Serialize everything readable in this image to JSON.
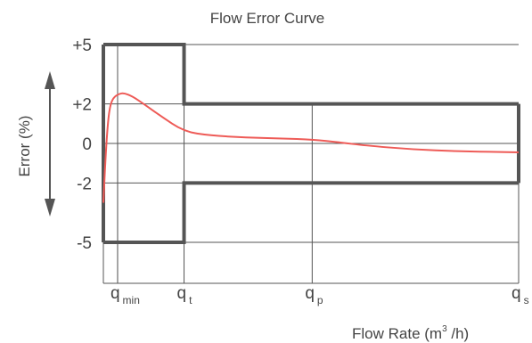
{
  "chart_data": {
    "type": "line",
    "title": "Flow Error Curve",
    "xlabel": "Flow Rate (m",
    "xlabel_sup": "3",
    "xlabel_tail": " /h)",
    "ylabel": "Error (%)",
    "y_ticks": [
      {
        "value": 5,
        "label": "+5"
      },
      {
        "value": 2,
        "label": "+2"
      },
      {
        "value": 0,
        "label": "0"
      },
      {
        "value": -2,
        "label": "-2"
      },
      {
        "value": -5,
        "label": "-5"
      }
    ],
    "x_ticks": [
      {
        "value": 0.06,
        "main": "q",
        "sub": "min"
      },
      {
        "value": 0.34,
        "main": "q",
        "sub": "t"
      },
      {
        "value": 0.88,
        "main": "q",
        "sub": "p"
      },
      {
        "value": 1.75,
        "main": "q",
        "sub": "s"
      }
    ],
    "xlim": [
      0,
      1.75
    ],
    "ylim": [
      -5,
      5
    ],
    "grid": true,
    "colors": {
      "curve": "#ee5b57",
      "envelope": "#555555",
      "grid": "#555555",
      "text": "#444444"
    },
    "envelope": {
      "upper": [
        [
          0,
          5
        ],
        [
          0.34,
          5
        ],
        [
          0.34,
          2
        ],
        [
          1.75,
          2
        ]
      ],
      "lower": [
        [
          0,
          -5
        ],
        [
          0.34,
          -5
        ],
        [
          0.34,
          -2
        ],
        [
          1.75,
          -2
        ]
      ]
    },
    "series": [
      {
        "points": [
          [
            0.0,
            -3.0
          ],
          [
            0.01,
            -0.5
          ],
          [
            0.02,
            1.2
          ],
          [
            0.03,
            2.0
          ],
          [
            0.045,
            2.35
          ],
          [
            0.065,
            2.5
          ],
          [
            0.085,
            2.55
          ],
          [
            0.12,
            2.4
          ],
          [
            0.17,
            2.0
          ],
          [
            0.24,
            1.4
          ],
          [
            0.34,
            0.6
          ],
          [
            0.45,
            0.4
          ],
          [
            0.6,
            0.3
          ],
          [
            0.75,
            0.25
          ],
          [
            0.88,
            0.2
          ],
          [
            1.0,
            0.05
          ],
          [
            1.1,
            -0.1
          ],
          [
            1.3,
            -0.3
          ],
          [
            1.5,
            -0.4
          ],
          [
            1.75,
            -0.45
          ]
        ]
      }
    ]
  }
}
